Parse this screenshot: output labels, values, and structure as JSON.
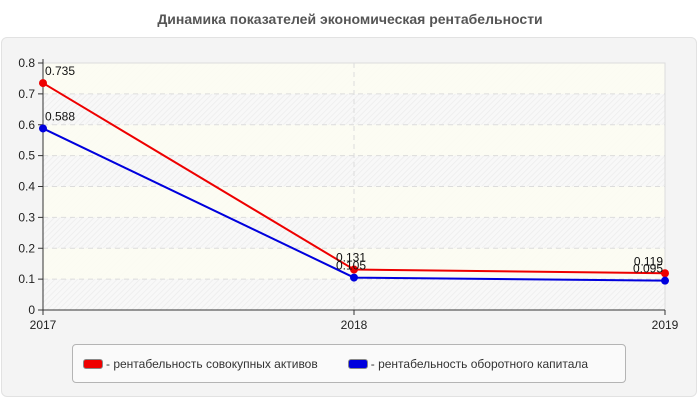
{
  "chart_data": {
    "type": "line",
    "title": "Динамика показателей экономическая рентабельности",
    "xlabel": "",
    "ylabel": "",
    "categories": [
      "2017",
      "2018",
      "2019"
    ],
    "ylim": [
      0,
      0.8
    ],
    "yticks": [
      "0",
      "0.1",
      "0.2",
      "0.3",
      "0.4",
      "0.5",
      "0.6",
      "0.7",
      "0.8"
    ],
    "grid": true,
    "legend_position": "bottom",
    "series": [
      {
        "name": "- рентабельность совокупных активов",
        "color": "#ee0000",
        "values": [
          0.735,
          0.131,
          0.119
        ],
        "labels": [
          "0.735",
          "0.131",
          "0.119"
        ]
      },
      {
        "name": "- рентабельность оборотного капитала",
        "color": "#0000dd",
        "values": [
          0.588,
          0.105,
          0.095
        ],
        "labels": [
          "0.588",
          "0.105",
          "0.095"
        ]
      }
    ]
  }
}
